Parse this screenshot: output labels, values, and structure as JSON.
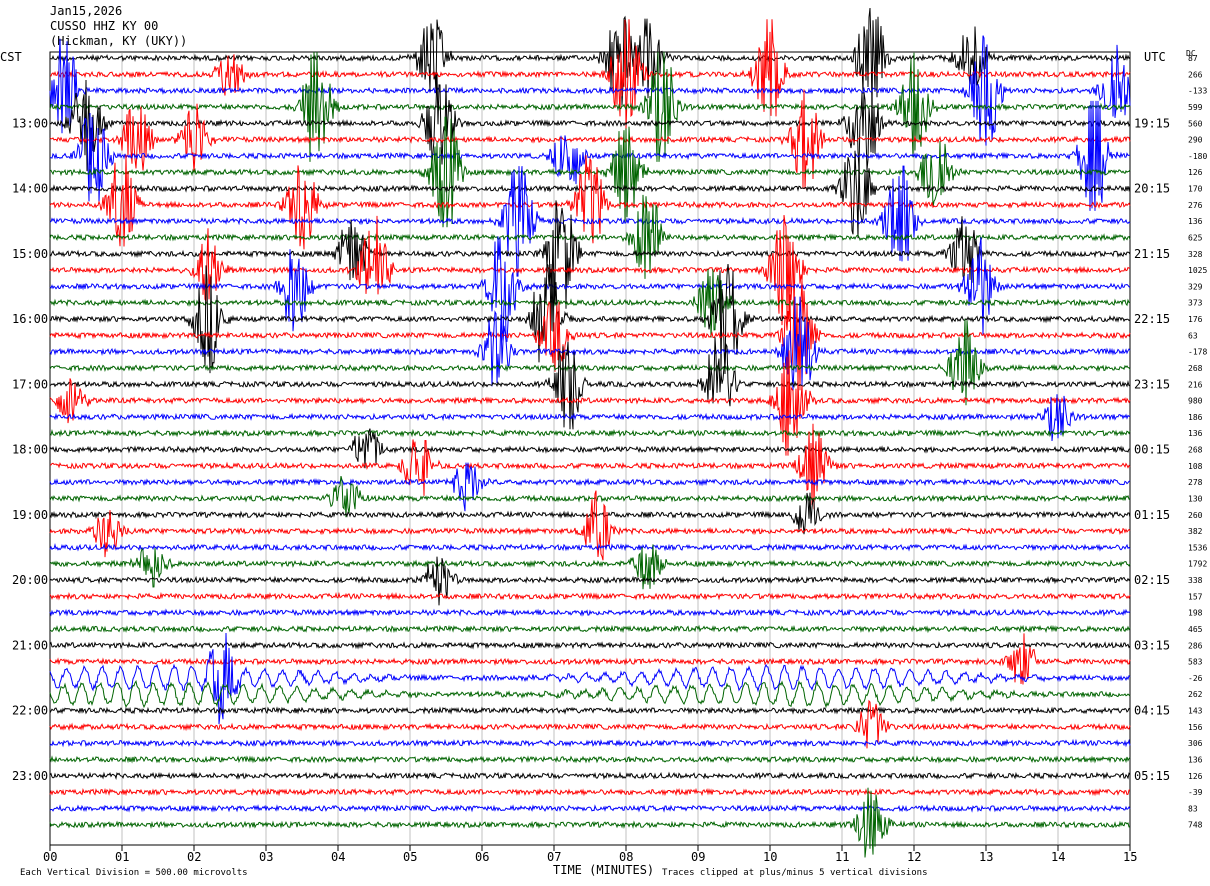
{
  "header": {
    "date": "Jan15,2026",
    "station": "CUSSO HHZ KY 00",
    "location": "(Hickman, KY (UKY))"
  },
  "labels": {
    "left_zone": "CST",
    "right_zone": "UTC",
    "dc_label": "DC",
    "xlabel": "TIME (MINUTES)",
    "scale_note": "Each Vertical Division =  500.00 microvolts",
    "clip_note": "Traces clipped at plus/minus 5 vertical divisions"
  },
  "colors": [
    "#000000",
    "#ff0000",
    "#0000ff",
    "#006400"
  ],
  "chart_data": {
    "type": "seismogram-helicorder",
    "x_range": [
      0,
      15
    ],
    "x_ticks": [
      "00",
      "01",
      "02",
      "03",
      "04",
      "05",
      "06",
      "07",
      "08",
      "09",
      "10",
      "11",
      "12",
      "13",
      "14",
      "15"
    ],
    "left_hour_labels": [
      "13:00",
      "14:00",
      "15:00",
      "16:00",
      "17:00",
      "18:00",
      "19:00",
      "20:00",
      "21:00",
      "22:00",
      "23:00"
    ],
    "right_hour_labels": [
      "19:15",
      "20:15",
      "21:15",
      "22:15",
      "23:15",
      "00:15",
      "01:15",
      "02:15",
      "03:15",
      "04:15",
      "05:15"
    ],
    "dc_offsets": [
      "87",
      "266",
      "-133",
      "599",
      "560",
      "290",
      "-180",
      "126",
      "170",
      "276",
      "136",
      "625",
      "328",
      "1025",
      "329",
      "373",
      "176",
      "63",
      "-178",
      "268",
      "216",
      "980",
      "186",
      "136",
      "268",
      "108",
      "278",
      "130",
      "260",
      "382",
      "1536",
      "1792",
      "338",
      "157",
      "198",
      "465",
      "286",
      "583",
      "-26",
      "262",
      "143",
      "156",
      "306",
      "136",
      "126",
      "-39",
      "83",
      "748"
    ],
    "events": [
      {
        "trace": 0,
        "minute": 5.3,
        "amp": 3.5
      },
      {
        "trace": 0,
        "minute": 7.9,
        "amp": 4
      },
      {
        "trace": 0,
        "minute": 8.3,
        "amp": 3
      },
      {
        "trace": 0,
        "minute": 11.4,
        "amp": 4
      },
      {
        "trace": 0,
        "minute": 12.8,
        "amp": 3
      },
      {
        "trace": 1,
        "minute": 8.0,
        "amp": 5
      },
      {
        "trace": 1,
        "minute": 10.0,
        "amp": 5
      },
      {
        "trace": 1,
        "minute": 2.5,
        "amp": 2
      },
      {
        "trace": 2,
        "minute": 0.2,
        "amp": 4
      },
      {
        "trace": 2,
        "minute": 13.0,
        "amp": 5
      },
      {
        "trace": 2,
        "minute": 14.8,
        "amp": 4
      },
      {
        "trace": 3,
        "minute": 3.7,
        "amp": 5
      },
      {
        "trace": 3,
        "minute": 8.5,
        "amp": 5
      },
      {
        "trace": 3,
        "minute": 12.0,
        "amp": 4
      },
      {
        "trace": 4,
        "minute": 0.5,
        "amp": 4
      },
      {
        "trace": 4,
        "minute": 5.4,
        "amp": 4
      },
      {
        "trace": 4,
        "minute": 11.3,
        "amp": 5
      },
      {
        "trace": 5,
        "minute": 1.2,
        "amp": 3
      },
      {
        "trace": 5,
        "minute": 2.0,
        "amp": 3
      },
      {
        "trace": 5,
        "minute": 10.5,
        "amp": 4
      },
      {
        "trace": 6,
        "minute": 0.6,
        "amp": 4
      },
      {
        "trace": 6,
        "minute": 7.2,
        "amp": 3
      },
      {
        "trace": 6,
        "minute": 14.5,
        "amp": 5
      },
      {
        "trace": 7,
        "minute": 5.5,
        "amp": 5
      },
      {
        "trace": 7,
        "minute": 8.0,
        "amp": 4
      },
      {
        "trace": 7,
        "minute": 12.3,
        "amp": 4
      },
      {
        "trace": 8,
        "minute": 11.2,
        "amp": 4
      },
      {
        "trace": 9,
        "minute": 1.0,
        "amp": 4
      },
      {
        "trace": 9,
        "minute": 3.5,
        "amp": 4
      },
      {
        "trace": 9,
        "minute": 7.5,
        "amp": 4
      },
      {
        "trace": 10,
        "minute": 6.5,
        "amp": 5
      },
      {
        "trace": 10,
        "minute": 11.8,
        "amp": 5
      },
      {
        "trace": 11,
        "minute": 8.3,
        "amp": 4
      },
      {
        "trace": 12,
        "minute": 4.2,
        "amp": 3
      },
      {
        "trace": 12,
        "minute": 7.1,
        "amp": 5
      },
      {
        "trace": 12,
        "minute": 12.7,
        "amp": 3
      },
      {
        "trace": 13,
        "minute": 2.2,
        "amp": 3
      },
      {
        "trace": 13,
        "minute": 4.5,
        "amp": 4
      },
      {
        "trace": 13,
        "minute": 10.2,
        "amp": 5
      },
      {
        "trace": 14,
        "minute": 3.4,
        "amp": 4
      },
      {
        "trace": 14,
        "minute": 6.3,
        "amp": 5
      },
      {
        "trace": 14,
        "minute": 12.9,
        "amp": 4
      },
      {
        "trace": 15,
        "minute": 9.2,
        "amp": 3
      },
      {
        "trace": 16,
        "minute": 2.2,
        "amp": 4
      },
      {
        "trace": 16,
        "minute": 6.9,
        "amp": 5
      },
      {
        "trace": 16,
        "minute": 9.4,
        "amp": 5
      },
      {
        "trace": 17,
        "minute": 7.0,
        "amp": 3
      },
      {
        "trace": 17,
        "minute": 10.4,
        "amp": 5
      },
      {
        "trace": 18,
        "minute": 6.2,
        "amp": 3
      },
      {
        "trace": 18,
        "minute": 10.4,
        "amp": 5
      },
      {
        "trace": 19,
        "minute": 12.7,
        "amp": 4
      },
      {
        "trace": 20,
        "minute": 7.2,
        "amp": 4
      },
      {
        "trace": 20,
        "minute": 9.3,
        "amp": 4
      },
      {
        "trace": 21,
        "minute": 10.3,
        "amp": 5
      },
      {
        "trace": 21,
        "minute": 0.3,
        "amp": 2
      },
      {
        "trace": 22,
        "minute": 14.0,
        "amp": 2
      },
      {
        "trace": 24,
        "minute": 4.4,
        "amp": 2
      },
      {
        "trace": 25,
        "minute": 5.1,
        "amp": 3
      },
      {
        "trace": 25,
        "minute": 10.6,
        "amp": 3
      },
      {
        "trace": 26,
        "minute": 5.8,
        "amp": 2
      },
      {
        "trace": 27,
        "minute": 4.1,
        "amp": 2
      },
      {
        "trace": 28,
        "minute": 10.5,
        "amp": 2
      },
      {
        "trace": 29,
        "minute": 7.6,
        "amp": 3
      },
      {
        "trace": 29,
        "minute": 0.8,
        "amp": 2
      },
      {
        "trace": 31,
        "minute": 1.4,
        "amp": 2
      },
      {
        "trace": 31,
        "minute": 8.3,
        "amp": 2
      },
      {
        "trace": 32,
        "minute": 5.4,
        "amp": 2
      },
      {
        "trace": 37,
        "minute": 13.5,
        "amp": 2
      },
      {
        "trace": 38,
        "minute": 2.4,
        "amp": 3
      },
      {
        "trace": 41,
        "minute": 11.4,
        "amp": 2
      },
      {
        "trace": 47,
        "minute": 11.4,
        "amp": 3
      }
    ],
    "long_period": [
      {
        "trace": 38,
        "amp": 1.8
      },
      {
        "trace": 39,
        "amp": 1.8
      }
    ]
  }
}
